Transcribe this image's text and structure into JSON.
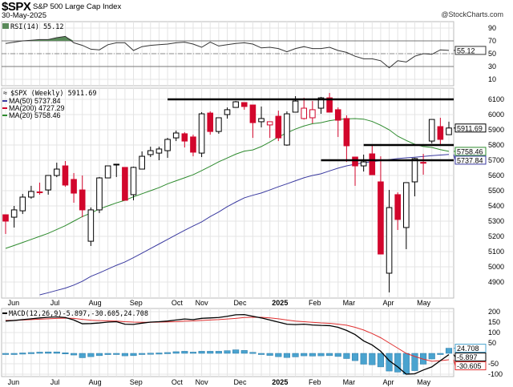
{
  "header": {
    "symbol": "$SPX",
    "name": "S&P 500 Large Cap Index",
    "date": "30-May-2025",
    "brand": "@StockCharts.com"
  },
  "colors": {
    "up": "#000000",
    "down": "#d2062c",
    "ma20": "#2e8b2e",
    "ma50": "#3a3aa0",
    "ma200": "#d2062c",
    "macd": "#000000",
    "signal": "#e03030",
    "hist": "#4aa3cf",
    "rsi_fill": "#5a8a5a"
  },
  "chart_data": [
    {
      "type": "line",
      "panel": "RSI",
      "legend": "RSI(14) 55.12",
      "last_value_label": "55.12",
      "ylim": [
        0,
        100
      ],
      "yticks": [
        "90",
        "70",
        "50",
        "30",
        "10"
      ],
      "reference_lines": [
        70,
        50,
        30
      ],
      "values": [
        66,
        68,
        70,
        71,
        72,
        72,
        75,
        77,
        67,
        63,
        57,
        56,
        64,
        67,
        67,
        55,
        61,
        63,
        64,
        65,
        67,
        68,
        65,
        60,
        68,
        62,
        64,
        66,
        67,
        65,
        59,
        60,
        58,
        53,
        58,
        61,
        58,
        58,
        60,
        55,
        52,
        46,
        42,
        42,
        39,
        28,
        39,
        37,
        46,
        50,
        49,
        56,
        55.12
      ]
    },
    {
      "type": "candlestick",
      "panel": "price",
      "legend": {
        "title": "$SPX (Weekly) 5911.69",
        "ma50": "MA(50) 5737.84",
        "ma200": "MA(200) 4727.29",
        "ma20": "MA(20) 5758.46"
      },
      "last_price_label": "5911.69",
      "ma20_label": "5758.46",
      "ma50_label": "5737.84",
      "ylim": [
        4810,
        6180
      ],
      "yticks": [
        "6100",
        "6000",
        "5900",
        "5800",
        "5700",
        "5600",
        "5500",
        "5400",
        "5300",
        "5200",
        "5100",
        "5000",
        "4900"
      ],
      "grid": true,
      "candles": [
        {
          "o": 5342,
          "h": 5345,
          "l": 5216,
          "c": 5300
        },
        {
          "o": 5326,
          "h": 5400,
          "l": 5258,
          "c": 5374
        },
        {
          "o": 5368,
          "h": 5479,
          "l": 5347,
          "c": 5458
        },
        {
          "o": 5458,
          "h": 5532,
          "l": 5447,
          "c": 5495
        },
        {
          "o": 5492,
          "h": 5553,
          "l": 5474,
          "c": 5489
        },
        {
          "o": 5505,
          "h": 5600,
          "l": 5474,
          "c": 5600
        },
        {
          "o": 5600,
          "h": 5684,
          "l": 5589,
          "c": 5642
        },
        {
          "o": 5663,
          "h": 5695,
          "l": 5526,
          "c": 5537
        },
        {
          "o": 5574,
          "h": 5616,
          "l": 5421,
          "c": 5484
        },
        {
          "o": 5505,
          "h": 5600,
          "l": 5326,
          "c": 5374
        },
        {
          "o": 5168,
          "h": 5390,
          "l": 5137,
          "c": 5374
        },
        {
          "o": 5374,
          "h": 5590,
          "l": 5353,
          "c": 5584
        },
        {
          "o": 5584,
          "h": 5663,
          "l": 5584,
          "c": 5663
        },
        {
          "o": 5670,
          "h": 5674,
          "l": 5590,
          "c": 5674
        },
        {
          "o": 5653,
          "h": 5653,
          "l": 5437,
          "c": 5437
        },
        {
          "o": 5474,
          "h": 5658,
          "l": 5437,
          "c": 5653
        },
        {
          "o": 5642,
          "h": 5758,
          "l": 5642,
          "c": 5726
        },
        {
          "o": 5737,
          "h": 5789,
          "l": 5721,
          "c": 5763
        },
        {
          "o": 5747,
          "h": 5789,
          "l": 5700,
          "c": 5774
        },
        {
          "o": 5763,
          "h": 5847,
          "l": 5716,
          "c": 5837
        },
        {
          "o": 5847,
          "h": 5895,
          "l": 5826,
          "c": 5879
        },
        {
          "o": 5874,
          "h": 5884,
          "l": 5784,
          "c": 5826
        },
        {
          "o": 5853,
          "h": 5868,
          "l": 5726,
          "c": 5753
        },
        {
          "o": 5747,
          "h": 6016,
          "l": 5721,
          "c": 6005
        },
        {
          "o": 6010,
          "h": 6021,
          "l": 5868,
          "c": 5889
        },
        {
          "o": 5889,
          "h": 5979,
          "l": 5874,
          "c": 5979
        },
        {
          "o": 6000,
          "h": 6047,
          "l": 5974,
          "c": 6032
        },
        {
          "o": 6047,
          "h": 6089,
          "l": 6047,
          "c": 6084
        },
        {
          "o": 6079,
          "h": 6079,
          "l": 6032,
          "c": 6053
        },
        {
          "o": 6063,
          "h": 6063,
          "l": 5847,
          "c": 5947
        },
        {
          "o": 5953,
          "h": 6053,
          "l": 5916,
          "c": 5974
        },
        {
          "o": 5932,
          "h": 5953,
          "l": 5847,
          "c": 5953
        },
        {
          "o": 5989,
          "h": 6026,
          "l": 5826,
          "c": 5847
        },
        {
          "o": 5800,
          "h": 6021,
          "l": 5795,
          "c": 6005
        },
        {
          "o": 6016,
          "h": 6121,
          "l": 6016,
          "c": 6089
        },
        {
          "o": 5974,
          "h": 6110,
          "l": 5968,
          "c": 6042
        },
        {
          "o": 5979,
          "h": 6089,
          "l": 5942,
          "c": 6032
        },
        {
          "o": 6042,
          "h": 6116,
          "l": 6005,
          "c": 6110
        },
        {
          "o": 6110,
          "h": 6142,
          "l": 6016,
          "c": 6016
        },
        {
          "o": 6032,
          "h": 6047,
          "l": 5853,
          "c": 5963
        },
        {
          "o": 5974,
          "h": 5995,
          "l": 5689,
          "c": 5795
        },
        {
          "o": 5721,
          "h": 5721,
          "l": 5532,
          "c": 5663
        },
        {
          "o": 5663,
          "h": 5737,
          "l": 5626,
          "c": 5689
        },
        {
          "o": 5742,
          "h": 5805,
          "l": 5605,
          "c": 5605
        },
        {
          "o": 5558,
          "h": 5726,
          "l": 5084,
          "c": 5084
        },
        {
          "o": 4958,
          "h": 5505,
          "l": 4832,
          "c": 5389
        },
        {
          "o": 5474,
          "h": 5489,
          "l": 5242,
          "c": 5311
        },
        {
          "o": 5258,
          "h": 5553,
          "l": 5116,
          "c": 5553
        },
        {
          "o": 5558,
          "h": 5716,
          "l": 5463,
          "c": 5711
        },
        {
          "o": 5686,
          "h": 5742,
          "l": 5605,
          "c": 5684
        },
        {
          "o": 5826,
          "h": 5968,
          "l": 5810,
          "c": 5968
        },
        {
          "o": 5921,
          "h": 5979,
          "l": 5795,
          "c": 5837
        },
        {
          "o": 5868,
          "h": 5953,
          "l": 5868,
          "c": 5911.69
        }
      ],
      "ma20": [
        5121,
        5140,
        5160,
        5180,
        5200,
        5220,
        5245,
        5270,
        5300,
        5330,
        5353,
        5380,
        5400,
        5420,
        5437,
        5460,
        5480,
        5500,
        5520,
        5545,
        5565,
        5585,
        5605,
        5632,
        5660,
        5690,
        5715,
        5740,
        5760,
        5768,
        5790,
        5820,
        5853,
        5880,
        5905,
        5925,
        5940,
        5947,
        5960,
        5968,
        5972,
        5974,
        5970,
        5955,
        5930,
        5900,
        5858,
        5830,
        5805,
        5790,
        5784,
        5770,
        5758.46
      ],
      "ma50": [
        null,
        null,
        null,
        null,
        4816,
        4830,
        4845,
        4860,
        4880,
        4905,
        4937,
        4960,
        4985,
        5010,
        5032,
        5060,
        5090,
        5120,
        5150,
        5180,
        5210,
        5240,
        5268,
        5295,
        5330,
        5360,
        5395,
        5425,
        5453,
        5470,
        5485,
        5505,
        5526,
        5545,
        5565,
        5585,
        5600,
        5611,
        5630,
        5648,
        5663,
        5674,
        5684,
        5690,
        5698,
        5704,
        5711,
        5716,
        5720,
        5725,
        5730,
        5734,
        5737.84
      ],
      "horizontal_lines": [
        {
          "price": 6100,
          "from_week": 19
        },
        {
          "price": 5800,
          "from_week": 42
        },
        {
          "price": 5700,
          "from_week": 37
        }
      ]
    },
    {
      "type": "line+bar",
      "panel": "MACD",
      "legend": {
        "name": "MACD(12,26,9)",
        "macd": "-5.897",
        "signal": "-30.605",
        "hist": "24.708"
      },
      "ylim": [
        -120,
        210
      ],
      "yticks": [
        "200",
        "150",
        "100",
        "50",
        "-50",
        "-100"
      ],
      "macd": [
        155,
        158,
        162,
        166,
        170,
        173,
        175,
        172,
        160,
        142,
        143,
        146,
        150,
        152,
        140,
        139,
        145,
        150,
        152,
        155,
        160,
        165,
        162,
        168,
        170,
        172,
        178,
        185,
        186,
        178,
        170,
        160,
        150,
        140,
        138,
        140,
        136,
        134,
        133,
        125,
        110,
        90,
        60,
        40,
        10,
        -35,
        -65,
        -100,
        -98,
        -80,
        -65,
        -35,
        -5.897
      ],
      "signal": [
        158,
        158,
        160,
        162,
        164,
        166,
        168,
        169,
        168,
        163,
        159,
        157,
        156,
        155,
        152,
        150,
        149,
        149,
        150,
        151,
        152,
        155,
        156,
        158,
        160,
        162,
        165,
        168,
        172,
        173,
        173,
        170,
        166,
        160,
        155,
        152,
        149,
        146,
        144,
        140,
        135,
        125,
        112,
        95,
        75,
        50,
        25,
        0,
        -15,
        -28,
        -38,
        -35,
        -30.605
      ]
    }
  ],
  "x_axis": {
    "months": [
      {
        "label": "Jun",
        "week": 1
      },
      {
        "label": "Jul",
        "week": 6
      },
      {
        "label": "Aug",
        "week": 10.5
      },
      {
        "label": "Sep",
        "week": 15.3
      },
      {
        "label": "Oct",
        "week": 20.2
      },
      {
        "label": "Nov",
        "week": 23
      },
      {
        "label": "Dec",
        "week": 27.5
      },
      {
        "label": "2025",
        "week": 32,
        "bold": true
      },
      {
        "label": "Feb",
        "week": 36.3
      },
      {
        "label": "Mar",
        "week": 40.3
      },
      {
        "label": "Apr",
        "week": 45
      },
      {
        "label": "May",
        "week": 49
      }
    ]
  }
}
